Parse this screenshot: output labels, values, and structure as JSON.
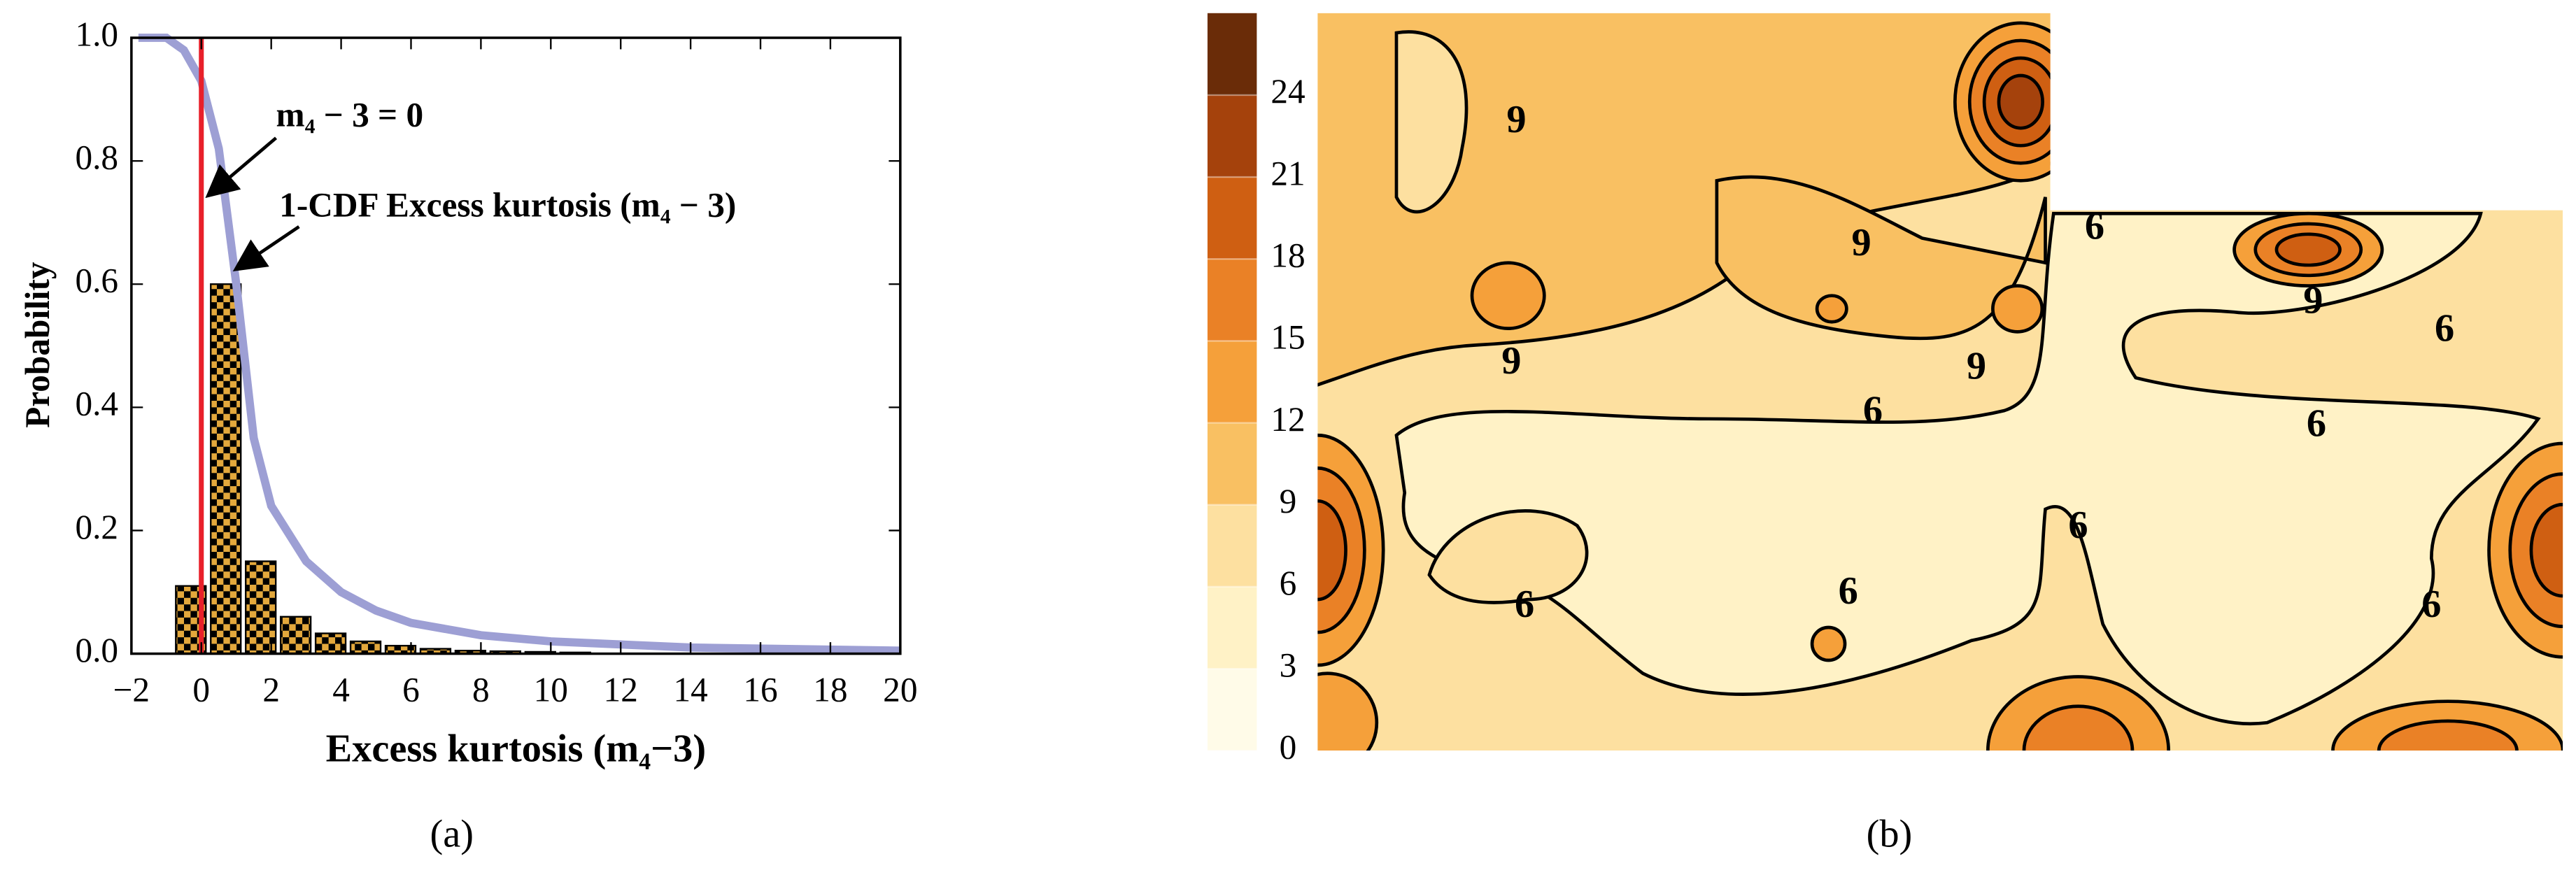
{
  "chart_data": [
    {
      "type": "histogram",
      "caption": "(a)",
      "xlabel": "Excess kurtosis (m₄−3)",
      "ylabel": "Probability",
      "xlim": [
        -2,
        20
      ],
      "ylim": [
        0,
        1
      ],
      "xticks": [
        {
          "value": -2,
          "label": "−2"
        },
        0,
        2,
        4,
        6,
        8,
        10,
        12,
        14,
        16,
        18,
        20
      ],
      "yticks": [
        {
          "value": 0,
          "label": "0.0"
        },
        0.2,
        0.4,
        0.6,
        0.8,
        {
          "value": 1,
          "label": "1.0"
        }
      ],
      "bins": [
        -0.8,
        0.2,
        1.2,
        2.2,
        3.2,
        4.2,
        5.2,
        6.2,
        7.2,
        8.2,
        9.2,
        10.2,
        11.2
      ],
      "values": [
        0.11,
        0.6,
        0.15,
        0.06,
        0.033,
        0.02,
        0.013,
        0.008,
        0.005,
        0.004,
        0.003,
        0.002
      ],
      "color": "#e3a83c",
      "line": {
        "x": [
          -1.8,
          -1,
          -0.5,
          0,
          0.5,
          1,
          1.5,
          2,
          3,
          4,
          5,
          6,
          8,
          10,
          14,
          20
        ],
        "values": [
          1,
          1,
          0.98,
          0.93,
          0.82,
          0.6,
          0.35,
          0.24,
          0.15,
          0.1,
          0.07,
          0.05,
          0.03,
          0.02,
          0.01,
          0.005
        ],
        "color": "#9d9fd4"
      },
      "vline": {
        "x": 0,
        "color": "#e8202a"
      },
      "annotations": [
        "m₄ − 3 = 0",
        "1-CDF Excess kurtosis (m₄ − 3)"
      ]
    },
    {
      "type": "contour",
      "caption": "(b)",
      "levels": [
        0,
        3,
        6,
        9,
        12,
        15,
        18,
        21,
        24,
        27
      ],
      "colors": [
        "#fffbe8",
        "#fff2c6",
        "#fde0a0",
        "#f9c062",
        "#f5a03a",
        "#ea8126",
        "#cf5f12",
        "#a5420c",
        "#6a2c08"
      ],
      "ticks": [
        0,
        3,
        6,
        9,
        12,
        15,
        18,
        21,
        24
      ],
      "contour_labels": [
        9,
        9,
        9,
        9,
        9,
        6,
        6,
        6,
        6,
        6,
        6,
        6,
        6
      ]
    }
  ]
}
